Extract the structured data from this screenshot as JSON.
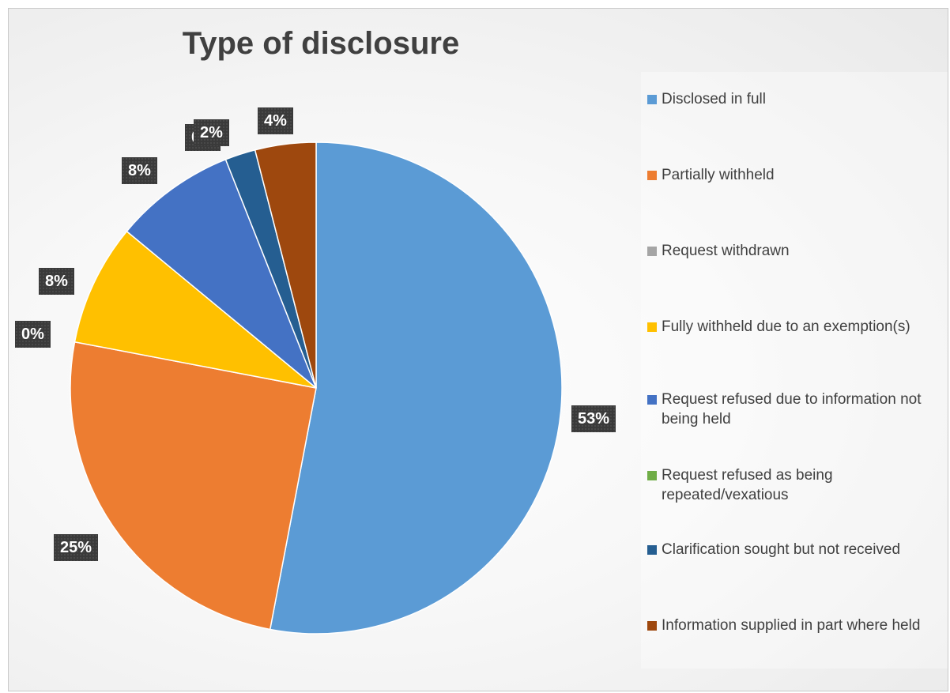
{
  "chart_data": {
    "type": "pie",
    "title": "Type of disclosure",
    "legend_position": "right",
    "slices": [
      {
        "label": "Disclosed in full",
        "value": 53,
        "display": "53%",
        "color": "#5b9bd5"
      },
      {
        "label": "Partially withheld",
        "value": 25,
        "display": "25%",
        "color": "#ed7d31"
      },
      {
        "label": "Request withdrawn",
        "value": 0,
        "display": "0%",
        "color": "#a5a5a5"
      },
      {
        "label": "Fully withheld due to an exemption(s)",
        "value": 8,
        "display": "8%",
        "color": "#ffc000"
      },
      {
        "label": "Request refused due to information not being held",
        "value": 8,
        "display": "8%",
        "color": "#4472c4"
      },
      {
        "label": "Request refused as being repeated/vexatious",
        "value": 0,
        "display": "0%",
        "color": "#70ad47"
      },
      {
        "label": "Clarification sought but not received",
        "value": 2,
        "display": "2%",
        "color": "#255e91"
      },
      {
        "label": "Information supplied in part where held",
        "value": 4,
        "display": "4%",
        "color": "#9e480e"
      }
    ]
  }
}
